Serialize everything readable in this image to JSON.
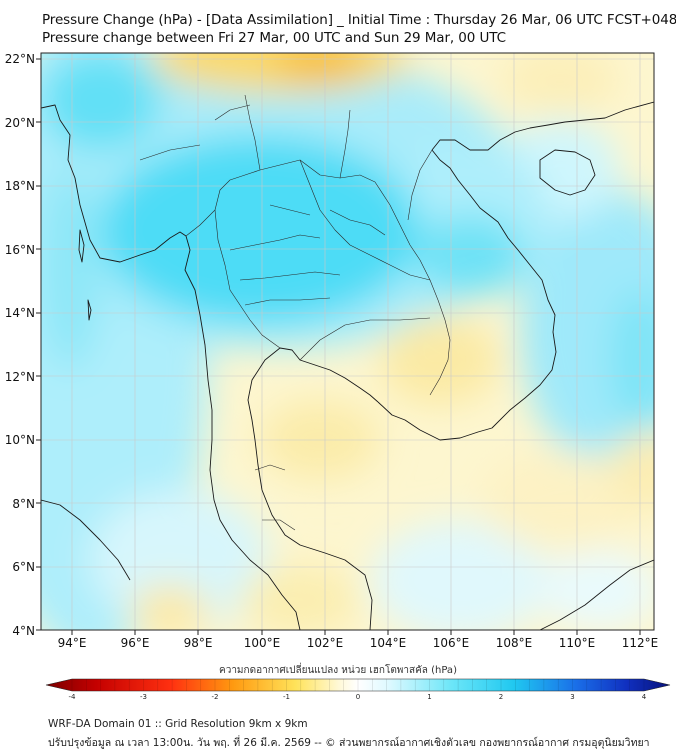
{
  "title": {
    "line1": "Pressure Change (hPa) - [Data Assimilation] _ Initial Time : Thursday 26 Mar, 06 UTC FCST+048",
    "line2": "Pressure change between Fri 27 Mar, 00 UTC and Sun 29 Mar, 00 UTC"
  },
  "map": {
    "lat_labels": [
      "22°N",
      "20°N",
      "18°N",
      "16°N",
      "14°N",
      "12°N",
      "10°N",
      "8°N",
      "6°N",
      "4°N"
    ],
    "lon_labels": [
      "94°E",
      "96°E",
      "98°E",
      "100°E",
      "102°E",
      "104°E",
      "106°E",
      "108°E",
      "110°E",
      "112°E"
    ],
    "lat_range": [
      4,
      22.2
    ],
    "lon_range": [
      93,
      112.5
    ],
    "grid": true
  },
  "colorbar": {
    "label": "ความกดอากาศเปลี่ยนแปลง หน่วย เฮกโตพาสคัล (hPa)",
    "ticks": [
      "-4",
      "-3",
      "-2",
      "-1",
      "0",
      "1",
      "2",
      "3",
      "4"
    ],
    "range": [
      -4,
      4
    ],
    "colors": {
      "dark_red": "#7a0000",
      "red": "#e81a10",
      "orange": "#ff8c00",
      "yellow": "#ffe35a",
      "pale_yellow": "#fff9cf",
      "white": "#ffffff",
      "pale_cyan": "#cdf6ff",
      "cyan": "#40dcf5",
      "blue": "#1a55e6",
      "navy": "#08127a"
    }
  },
  "footer": {
    "line1": "WRF-DA Domain 01 :: Grid Resolution 9km x 9km",
    "line2": "ปรับปรุงข้อมูล ณ เวลา 13:00น. วัน พฤ. ที่ 26 มี.ค. 2569 -- © ส่วนพยากรณ์อากาศเชิงตัวเลข กองพยากรณ์อากาศ กรมอุตุนิยมวิทยา"
  }
}
